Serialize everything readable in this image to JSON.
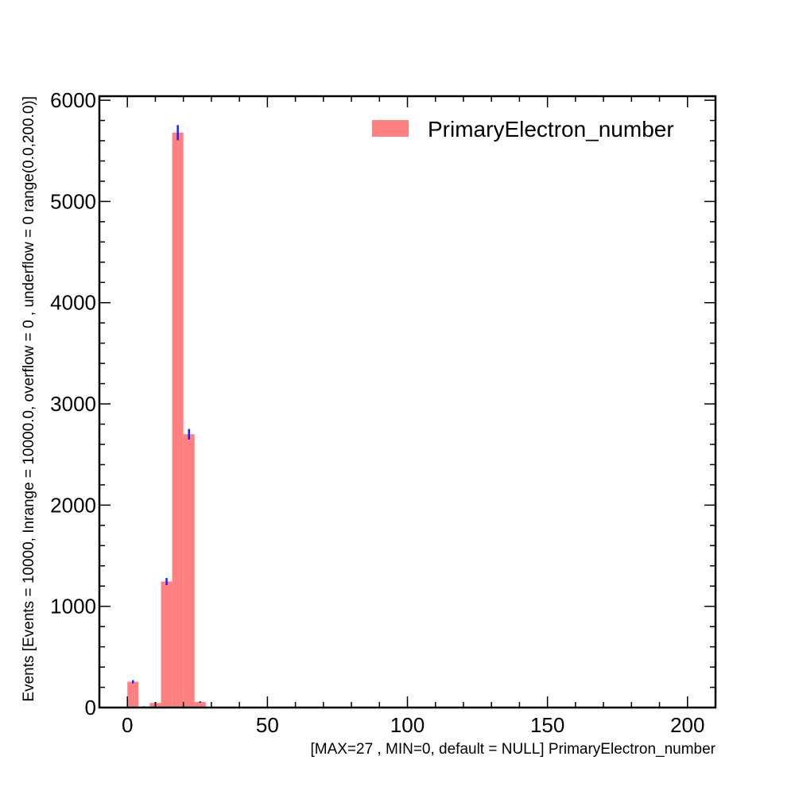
{
  "chart_data": {
    "type": "bar",
    "title": "",
    "xlabel": "[MAX=27 , MIN=0, default = NULL] PrimaryElectron_number",
    "ylabel": "Events [Events = 10000, Inrange = 10000.0, overflow = 0 , underflow = 0 range(0.0,200.0)]",
    "xlim": [
      -10,
      210
    ],
    "ylim": [
      0,
      6040
    ],
    "xticks": [
      0,
      50,
      100,
      150,
      200
    ],
    "yticks": [
      0,
      1000,
      2000,
      3000,
      4000,
      5000,
      6000
    ],
    "bin_edges": [
      0,
      4,
      8,
      12,
      16,
      20,
      24,
      28
    ],
    "values": [
      255,
      10,
      45,
      1245,
      5680,
      2700,
      55
    ],
    "errors": [
      16,
      3,
      7,
      35,
      75,
      52,
      7
    ],
    "legend": {
      "position": "top-right",
      "entries": [
        "PrimaryElectron_number"
      ]
    },
    "grid": false,
    "colors": {
      "bar": "#ff8080",
      "error": "#1f1fff",
      "axis": "#000000"
    }
  }
}
